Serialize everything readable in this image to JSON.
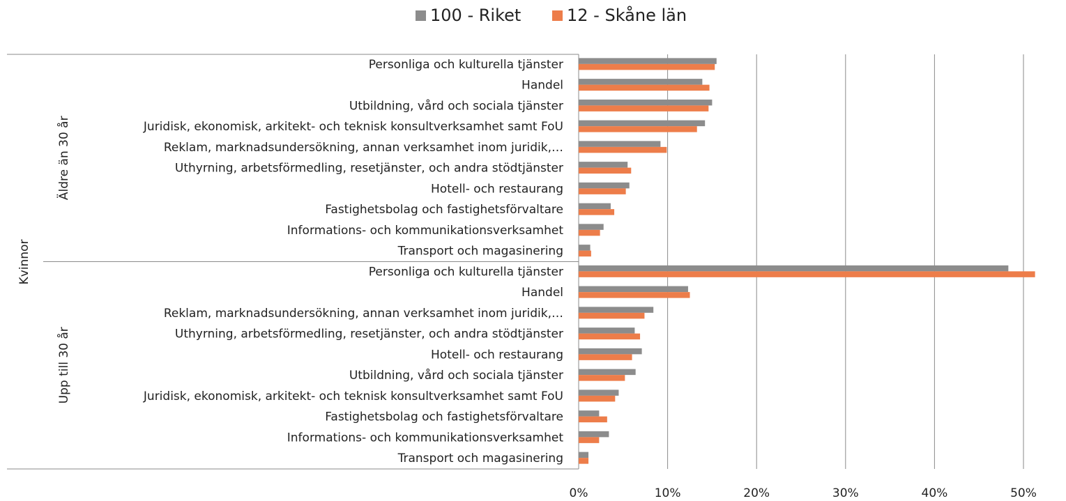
{
  "chart_data": {
    "type": "hbar",
    "outer_group": "Kvinnor",
    "groups": [
      "Äldre än 30 år",
      "Upp till 30 år"
    ],
    "categories": [
      "Personliga och kulturella tjänster",
      "Handel",
      "Utbildning, vård och sociala tjänster",
      "Juridisk, ekonomisk, arkitekt- och teknisk konsultverksamhet samt FoU",
      "Reklam, marknadsundersökning, annan verksamhet inom juridik,…",
      "Uthyrning, arbetsförmedling, resetjänster, och andra stödtjänster",
      "Hotell- och restaurang",
      "Fastighetsbolag och fastighetsförvaltare",
      "Informations- och kommunikationsverksamhet",
      "Transport och magasinering",
      "Personliga och kulturella tjänster",
      "Handel",
      "Reklam, marknadsundersökning, annan verksamhet inom juridik,…",
      "Uthyrning, arbetsförmedling, resetjänster, och andra stödtjänster",
      "Hotell- och restaurang",
      "Utbildning, vård och sociala tjänster",
      "Juridisk, ekonomisk, arkitekt- och teknisk konsultverksamhet samt FoU",
      "Fastighetsbolag och fastighetsförvaltare",
      "Informations- och kommunikationsverksamhet",
      "Transport och magasinering"
    ],
    "series": [
      {
        "name": "100 - Riket",
        "color": "#8c8c8c",
        "values": [
          15.5,
          13.9,
          15.0,
          14.2,
          9.2,
          5.5,
          5.7,
          3.6,
          2.8,
          1.3,
          48.3,
          12.3,
          8.4,
          6.3,
          7.1,
          6.4,
          4.5,
          2.3,
          3.4,
          1.1
        ]
      },
      {
        "name": "12 - Skåne län",
        "color": "#ed7d4a",
        "values": [
          15.3,
          14.7,
          14.6,
          13.3,
          9.9,
          5.9,
          5.3,
          4.0,
          2.4,
          1.4,
          51.3,
          12.5,
          7.4,
          6.9,
          6.0,
          5.2,
          4.1,
          3.2,
          2.3,
          1.1
        ]
      }
    ],
    "xlim": [
      0,
      50
    ],
    "xticks": [
      {
        "value": 0,
        "label": "0%"
      },
      {
        "value": 10,
        "label": "10%"
      },
      {
        "value": 20,
        "label": "20%"
      },
      {
        "value": 30,
        "label": "30%"
      },
      {
        "value": 40,
        "label": "40%"
      },
      {
        "value": 50,
        "label": "50%"
      }
    ],
    "grid": true,
    "legend": "top"
  }
}
